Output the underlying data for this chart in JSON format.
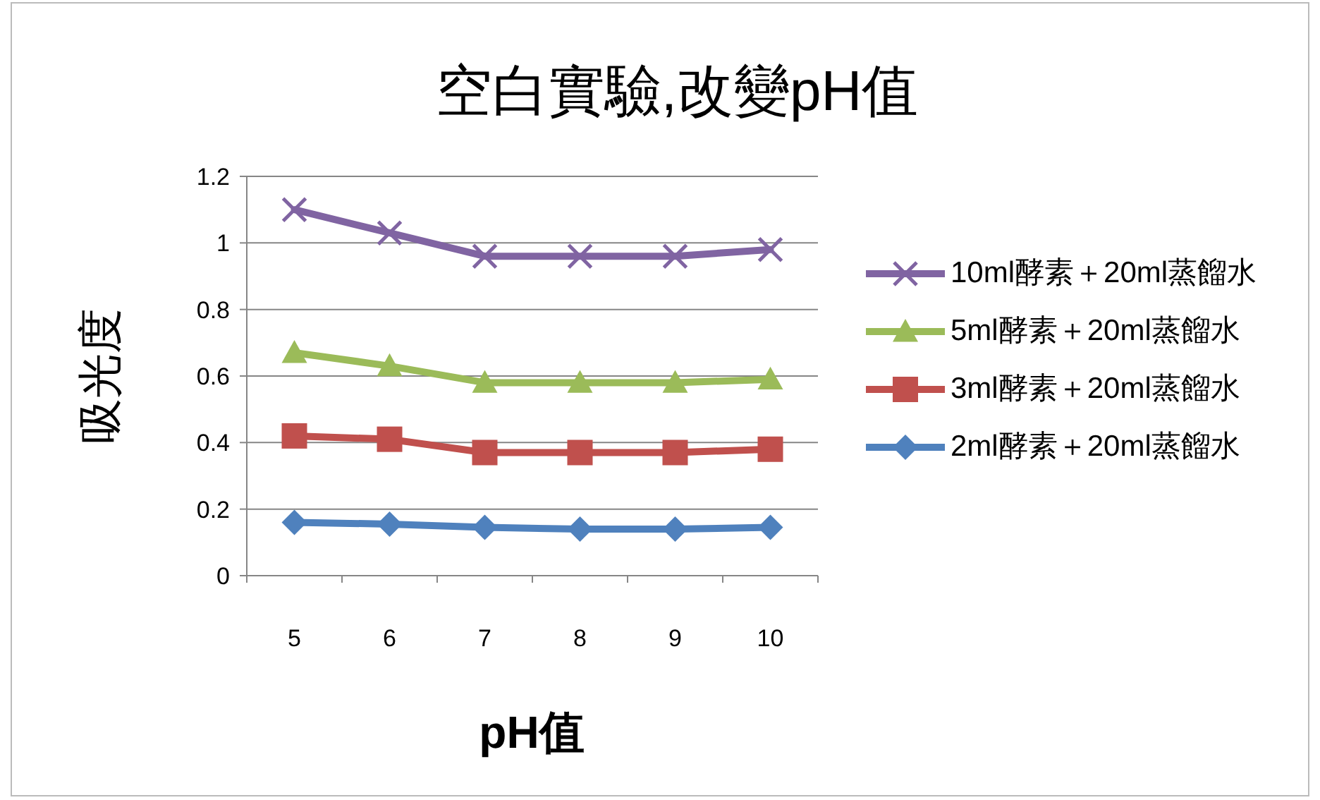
{
  "chart_data": {
    "type": "line",
    "title": "空白實驗,改變pH值",
    "xlabel": "pH值",
    "ylabel": "吸光度",
    "categories": [
      "5",
      "6",
      "7",
      "8",
      "9",
      "10"
    ],
    "ylim": [
      0,
      1.2
    ],
    "yticks": [
      0,
      0.2,
      0.4,
      0.6,
      0.8,
      1,
      1.2
    ],
    "grid": "y",
    "legend": "right",
    "series": [
      {
        "name": "10ml酵素＋20ml蒸餾水",
        "color": "#8064a2",
        "marker": "cross",
        "values": [
          1.1,
          1.03,
          0.96,
          0.96,
          0.96,
          0.98
        ]
      },
      {
        "name": "5ml酵素＋20ml蒸餾水",
        "color": "#9bbb59",
        "marker": "triangle",
        "values": [
          0.67,
          0.63,
          0.58,
          0.58,
          0.58,
          0.59
        ]
      },
      {
        "name": "3ml酵素＋20ml蒸餾水",
        "color": "#c0504d",
        "marker": "square",
        "values": [
          0.42,
          0.41,
          0.37,
          0.37,
          0.37,
          0.38
        ]
      },
      {
        "name": "2ml酵素＋20ml蒸餾水",
        "color": "#4f81bd",
        "marker": "diamond",
        "values": [
          0.16,
          0.155,
          0.145,
          0.14,
          0.14,
          0.145
        ]
      }
    ]
  }
}
